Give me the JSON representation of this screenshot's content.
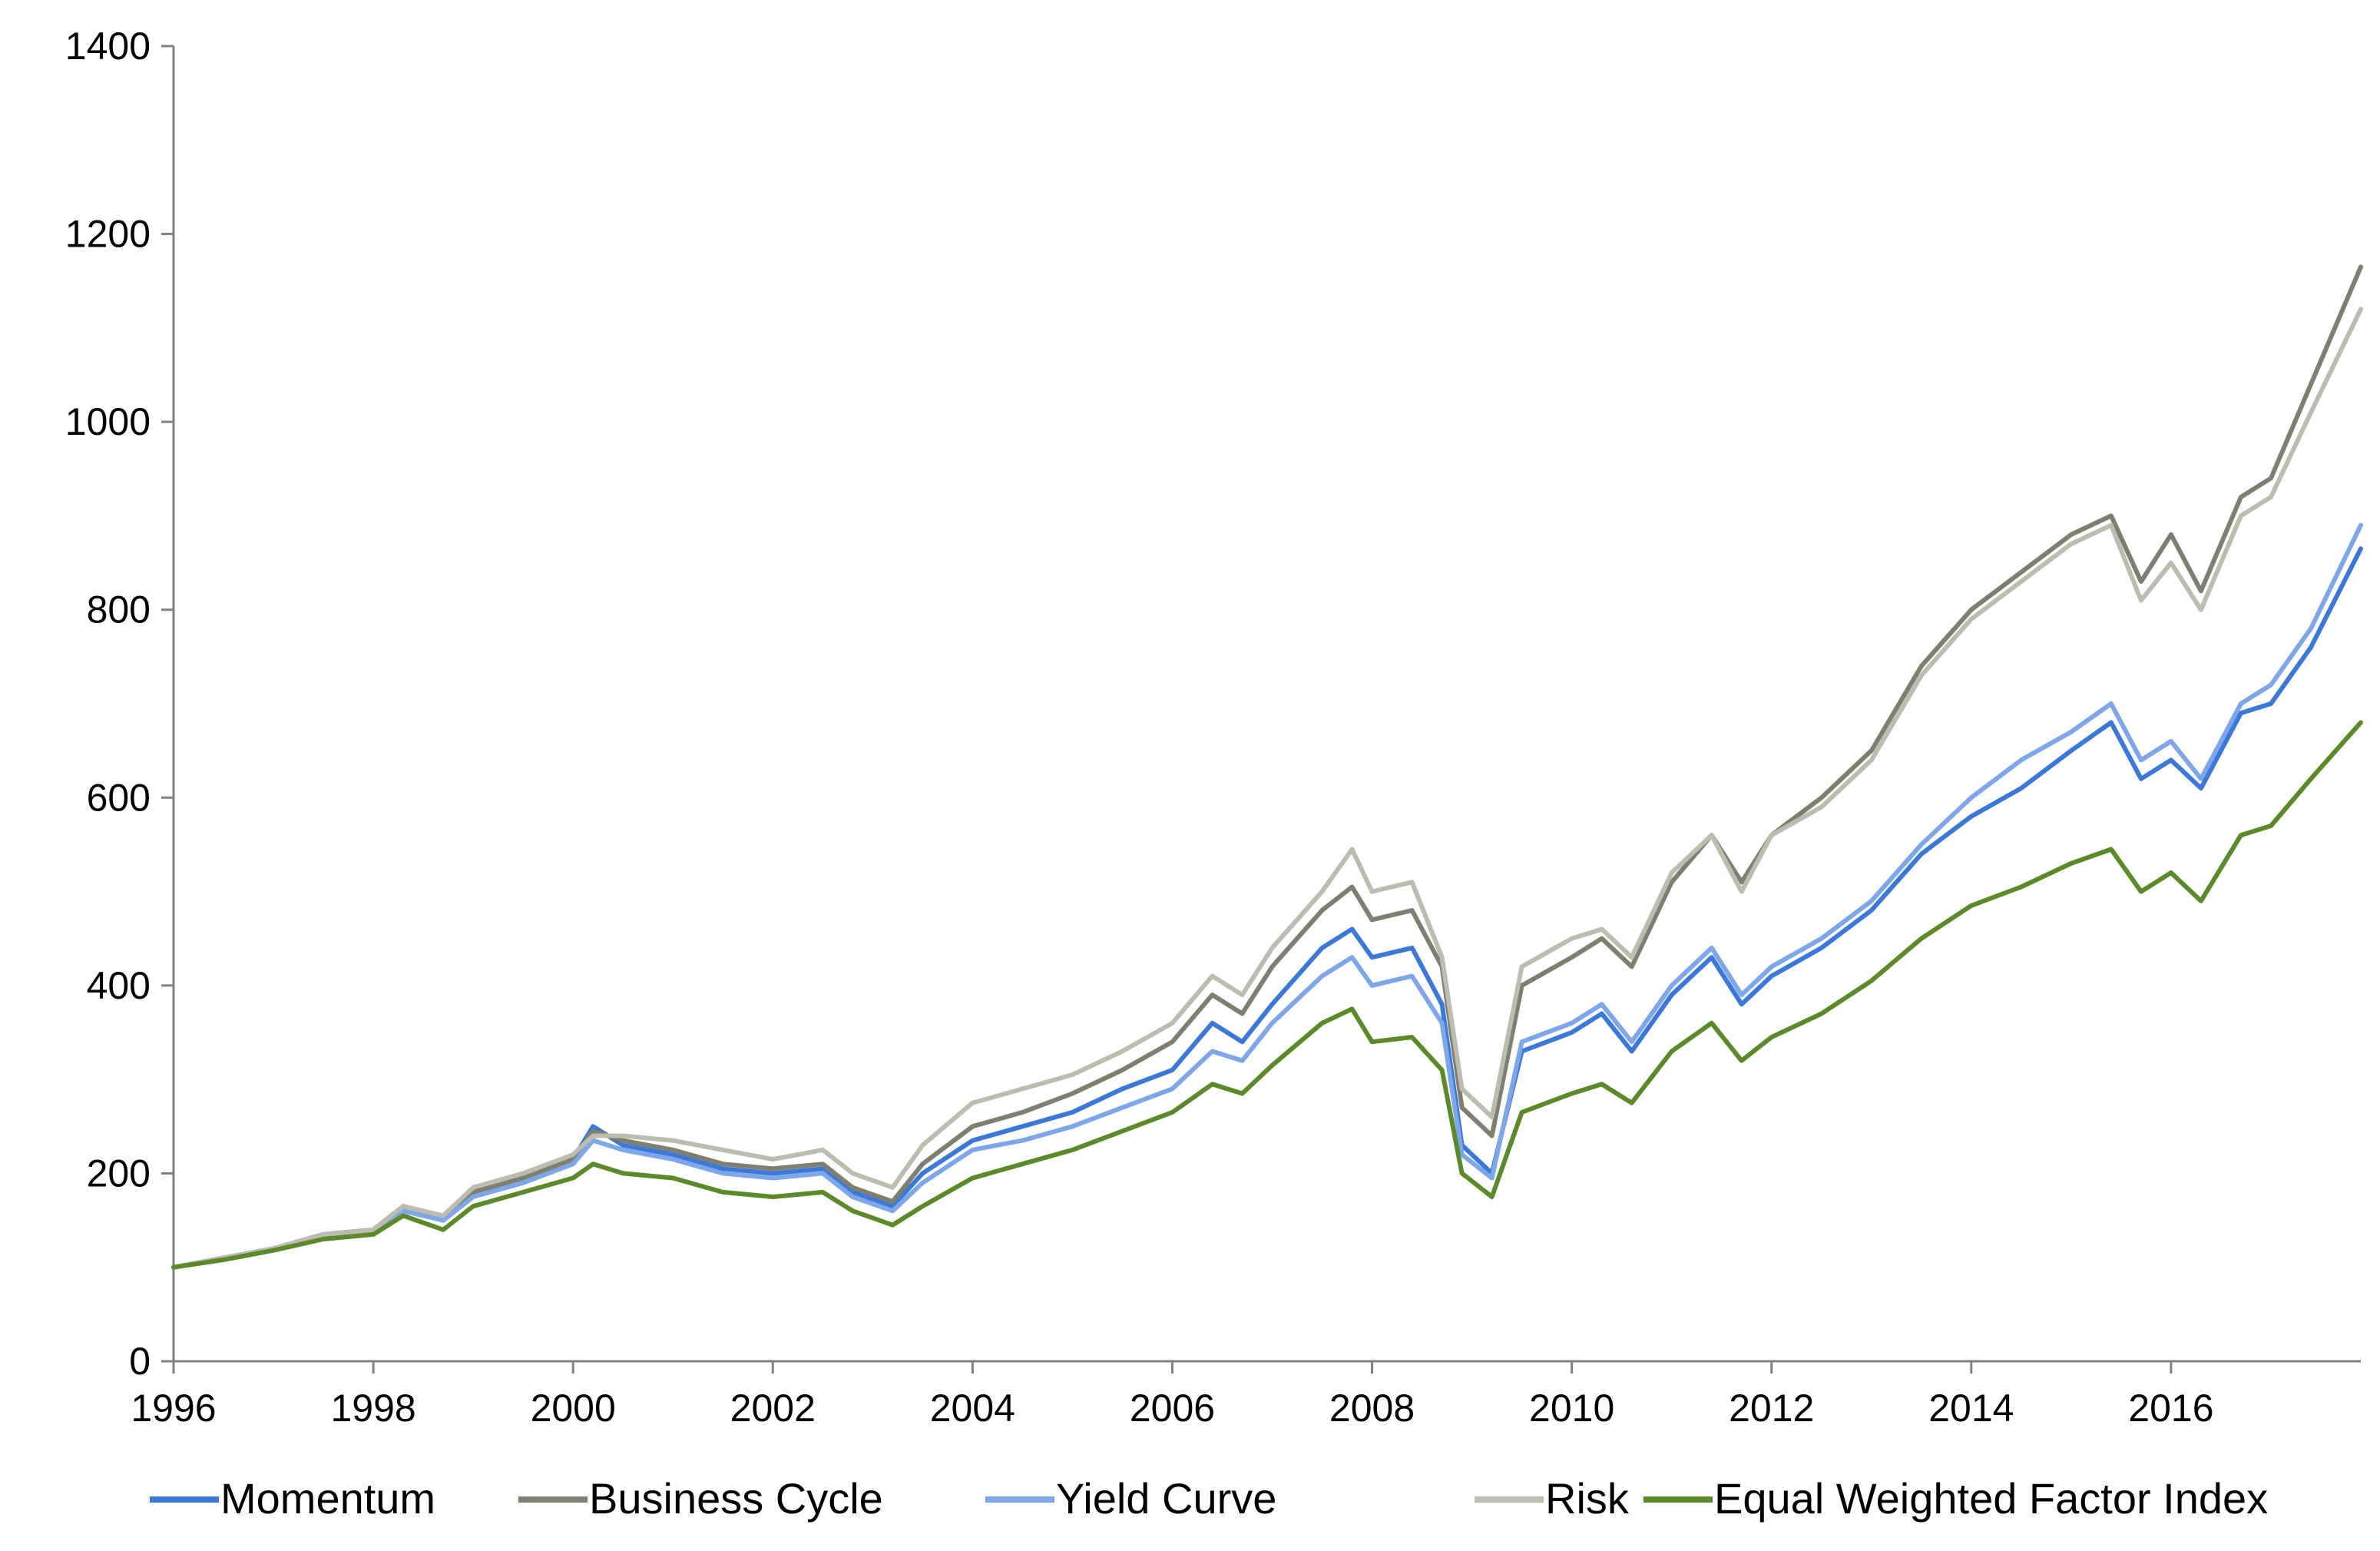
{
  "chart_data": {
    "type": "line",
    "title": "",
    "xlabel": "",
    "ylabel": "",
    "xlim": [
      1996,
      2017.9
    ],
    "ylim": [
      0,
      1400
    ],
    "x_ticks": [
      1996,
      1998,
      2000,
      2002,
      2004,
      2006,
      2008,
      2010,
      2012,
      2014,
      2016
    ],
    "x_tick_labels": [
      "1996",
      "1998",
      "2000",
      "2002",
      "2004",
      "2006",
      "2008",
      "2010",
      "2012",
      "2014",
      "2016"
    ],
    "y_ticks": [
      0,
      200,
      400,
      600,
      800,
      1000,
      1200,
      1400
    ],
    "y_tick_labels": [
      "0",
      "200",
      "400",
      "600",
      "800",
      "1000",
      "1200",
      "1400"
    ],
    "grid": false,
    "legend_position": "bottom",
    "x": [
      1996.0,
      1996.5,
      1997.0,
      1997.5,
      1998.0,
      1998.3,
      1998.7,
      1999.0,
      1999.5,
      2000.0,
      2000.2,
      2000.5,
      2001.0,
      2001.5,
      2002.0,
      2002.5,
      2002.8,
      2003.2,
      2003.5,
      2004.0,
      2004.5,
      2005.0,
      2005.5,
      2006.0,
      2006.4,
      2006.7,
      2007.0,
      2007.5,
      2007.8,
      2008.0,
      2008.4,
      2008.7,
      2008.9,
      2009.2,
      2009.5,
      2010.0,
      2010.3,
      2010.6,
      2011.0,
      2011.4,
      2011.7,
      2012.0,
      2012.5,
      2013.0,
      2013.5,
      2014.0,
      2014.5,
      2015.0,
      2015.4,
      2015.7,
      2016.0,
      2016.3,
      2016.7,
      2017.0,
      2017.4,
      2017.9
    ],
    "series": [
      {
        "name": "Momentum",
        "color": "#3C78D8",
        "values": [
          100,
          110,
          120,
          135,
          140,
          165,
          150,
          180,
          195,
          215,
          250,
          230,
          220,
          205,
          200,
          205,
          180,
          165,
          200,
          235,
          250,
          265,
          290,
          310,
          360,
          340,
          380,
          440,
          460,
          430,
          440,
          380,
          230,
          200,
          330,
          350,
          370,
          330,
          390,
          430,
          380,
          410,
          440,
          480,
          540,
          580,
          610,
          650,
          680,
          620,
          640,
          610,
          690,
          700,
          760,
          865
        ]
      },
      {
        "name": "Business Cycle",
        "color": "#7F7F6F",
        "values": [
          100,
          110,
          120,
          135,
          140,
          165,
          150,
          180,
          195,
          215,
          245,
          235,
          225,
          210,
          205,
          210,
          185,
          170,
          210,
          250,
          265,
          285,
          310,
          340,
          390,
          370,
          420,
          480,
          505,
          470,
          480,
          420,
          270,
          240,
          400,
          430,
          450,
          420,
          510,
          560,
          510,
          560,
          600,
          650,
          740,
          800,
          840,
          880,
          900,
          830,
          880,
          820,
          920,
          940,
          1040,
          1165
        ]
      },
      {
        "name": "Yield Curve",
        "color": "#7DA7E8",
        "values": [
          100,
          110,
          120,
          135,
          140,
          160,
          150,
          175,
          190,
          210,
          235,
          225,
          215,
          200,
          195,
          200,
          175,
          160,
          190,
          225,
          235,
          250,
          270,
          290,
          330,
          320,
          360,
          410,
          430,
          400,
          410,
          360,
          220,
          195,
          340,
          360,
          380,
          340,
          400,
          440,
          390,
          420,
          450,
          490,
          550,
          600,
          640,
          670,
          700,
          640,
          660,
          620,
          700,
          720,
          780,
          890
        ]
      },
      {
        "name": "Risk",
        "color": "#BDBDAF",
        "values": [
          100,
          110,
          120,
          135,
          140,
          165,
          155,
          185,
          200,
          220,
          240,
          240,
          235,
          225,
          215,
          225,
          200,
          185,
          230,
          275,
          290,
          305,
          330,
          360,
          410,
          390,
          440,
          500,
          545,
          500,
          510,
          430,
          290,
          260,
          420,
          450,
          460,
          430,
          520,
          560,
          500,
          560,
          590,
          640,
          730,
          790,
          830,
          870,
          890,
          810,
          850,
          800,
          900,
          920,
          1010,
          1120
        ]
      },
      {
        "name": "Equal Weighted Factor Index",
        "color": "#5B8A2A",
        "values": [
          100,
          108,
          118,
          130,
          135,
          155,
          140,
          165,
          180,
          195,
          210,
          200,
          195,
          180,
          175,
          180,
          160,
          145,
          165,
          195,
          210,
          225,
          245,
          265,
          295,
          285,
          315,
          360,
          375,
          340,
          345,
          310,
          200,
          175,
          265,
          285,
          295,
          275,
          330,
          360,
          320,
          345,
          370,
          405,
          450,
          485,
          505,
          530,
          545,
          500,
          520,
          490,
          560,
          570,
          620,
          680
        ]
      }
    ]
  }
}
